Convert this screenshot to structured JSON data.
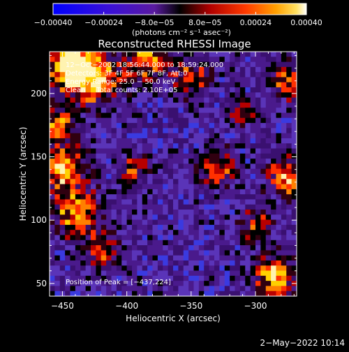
{
  "chart_data": {
    "type": "heatmap",
    "title": "Reconstructed RHESSI Image",
    "xlabel": "Heliocentric X (arcsec)",
    "ylabel": "Heliocentric Y (arcsec)",
    "xlim": [
      -460,
      -268
    ],
    "ylim": [
      40,
      233
    ],
    "x_ticks": [
      -450,
      -400,
      -350,
      -300
    ],
    "y_ticks": [
      50,
      100,
      150,
      200
    ],
    "x_tick_labels": [
      "−450",
      "−400",
      "−350",
      "−300"
    ],
    "y_tick_labels": [
      "50",
      "100",
      "150",
      "200"
    ],
    "colorbar": {
      "range": [
        -0.0004,
        0.0004
      ],
      "ticks": [
        -0.0004,
        -0.00024,
        -8e-05,
        8e-05,
        0.00024,
        0.0004
      ],
      "tick_labels": [
        "−0.00040",
        "−0.00024",
        "−8.0e−05",
        "8.0e−05",
        "0.00024",
        "0.00040"
      ],
      "unit_label": "(photons cm⁻² s⁻¹ asec⁻²)"
    },
    "info_lines": [
      "12−Oct−2002 18:56:44.000 to 18:59:24.000",
      "Detectors: 3F 4F 5F 6F 7F 8F, Att:0",
      "Energy Range: 25.0 − 50.0 keV",
      "Clean     Total counts: 2.10E+05"
    ],
    "peak_label": "Position of Peak = [−437,224]",
    "peak": [
      -437,
      224
    ]
  },
  "footer": {
    "timestamp": "2−May−2022 10:14"
  }
}
